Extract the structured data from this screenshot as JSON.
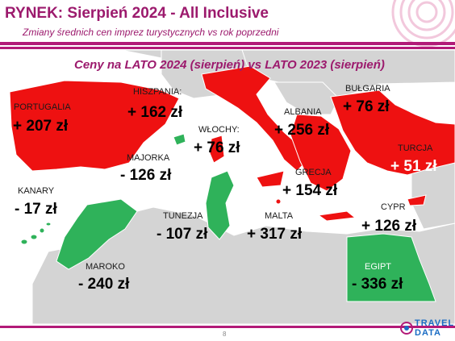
{
  "header": {
    "title": "RYNEK: Sierpień 2024 - All Inclusive",
    "subtitle": "Zmiany średnich cen imprez turystycznych vs rok poprzedni"
  },
  "map": {
    "title": "Ceny na LATO 2024 (sierpień) vs  LATO 2023 (sierpień)",
    "colors": {
      "increase": "#ee1111",
      "decrease": "#2fb25a",
      "land": "#d4d4d4",
      "sea": "#ffffff"
    },
    "countries": [
      {
        "id": "portugalia",
        "label": "PORTUGALIA",
        "value": "+ 207 zł",
        "change": "increase"
      },
      {
        "id": "hiszpania",
        "label": "HISZPANIA:",
        "value": "+ 162 zł",
        "change": "increase"
      },
      {
        "id": "majorka",
        "label": "MAJORKA",
        "value": "- 126 zł",
        "change": "decrease"
      },
      {
        "id": "wlochy",
        "label": "WŁOCHY:",
        "value": "+ 76 zł",
        "change": "increase"
      },
      {
        "id": "albania",
        "label": "ALBANIA",
        "value": "+ 256 zł",
        "change": "increase"
      },
      {
        "id": "bulgaria",
        "label": "BUŁGARIA",
        "value": "+ 76 zł",
        "change": "increase"
      },
      {
        "id": "turcja",
        "label": "TURCJA",
        "value": "+ 51 zł",
        "change": "increase"
      },
      {
        "id": "grecja",
        "label": "GRECJA",
        "value": "+ 154 zł",
        "change": "increase"
      },
      {
        "id": "kanary",
        "label": "KANARY",
        "value": "- 17 zł",
        "change": "decrease"
      },
      {
        "id": "tunezja",
        "label": "TUNEZJA",
        "value": "- 107 zł",
        "change": "decrease"
      },
      {
        "id": "malta",
        "label": "MALTA",
        "value": "+ 317 zł",
        "change": "increase"
      },
      {
        "id": "cypr",
        "label": "CYPR",
        "value": "+ 126 zł",
        "change": "increase"
      },
      {
        "id": "maroko",
        "label": "MAROKO",
        "value": "- 240 zł",
        "change": "decrease"
      },
      {
        "id": "egipt",
        "label": "EGIPT",
        "value": "- 336 zł",
        "change": "decrease"
      }
    ]
  },
  "footer": {
    "page_number": "8",
    "logo_top": "TRAVEL",
    "logo_bottom": "DATA"
  }
}
